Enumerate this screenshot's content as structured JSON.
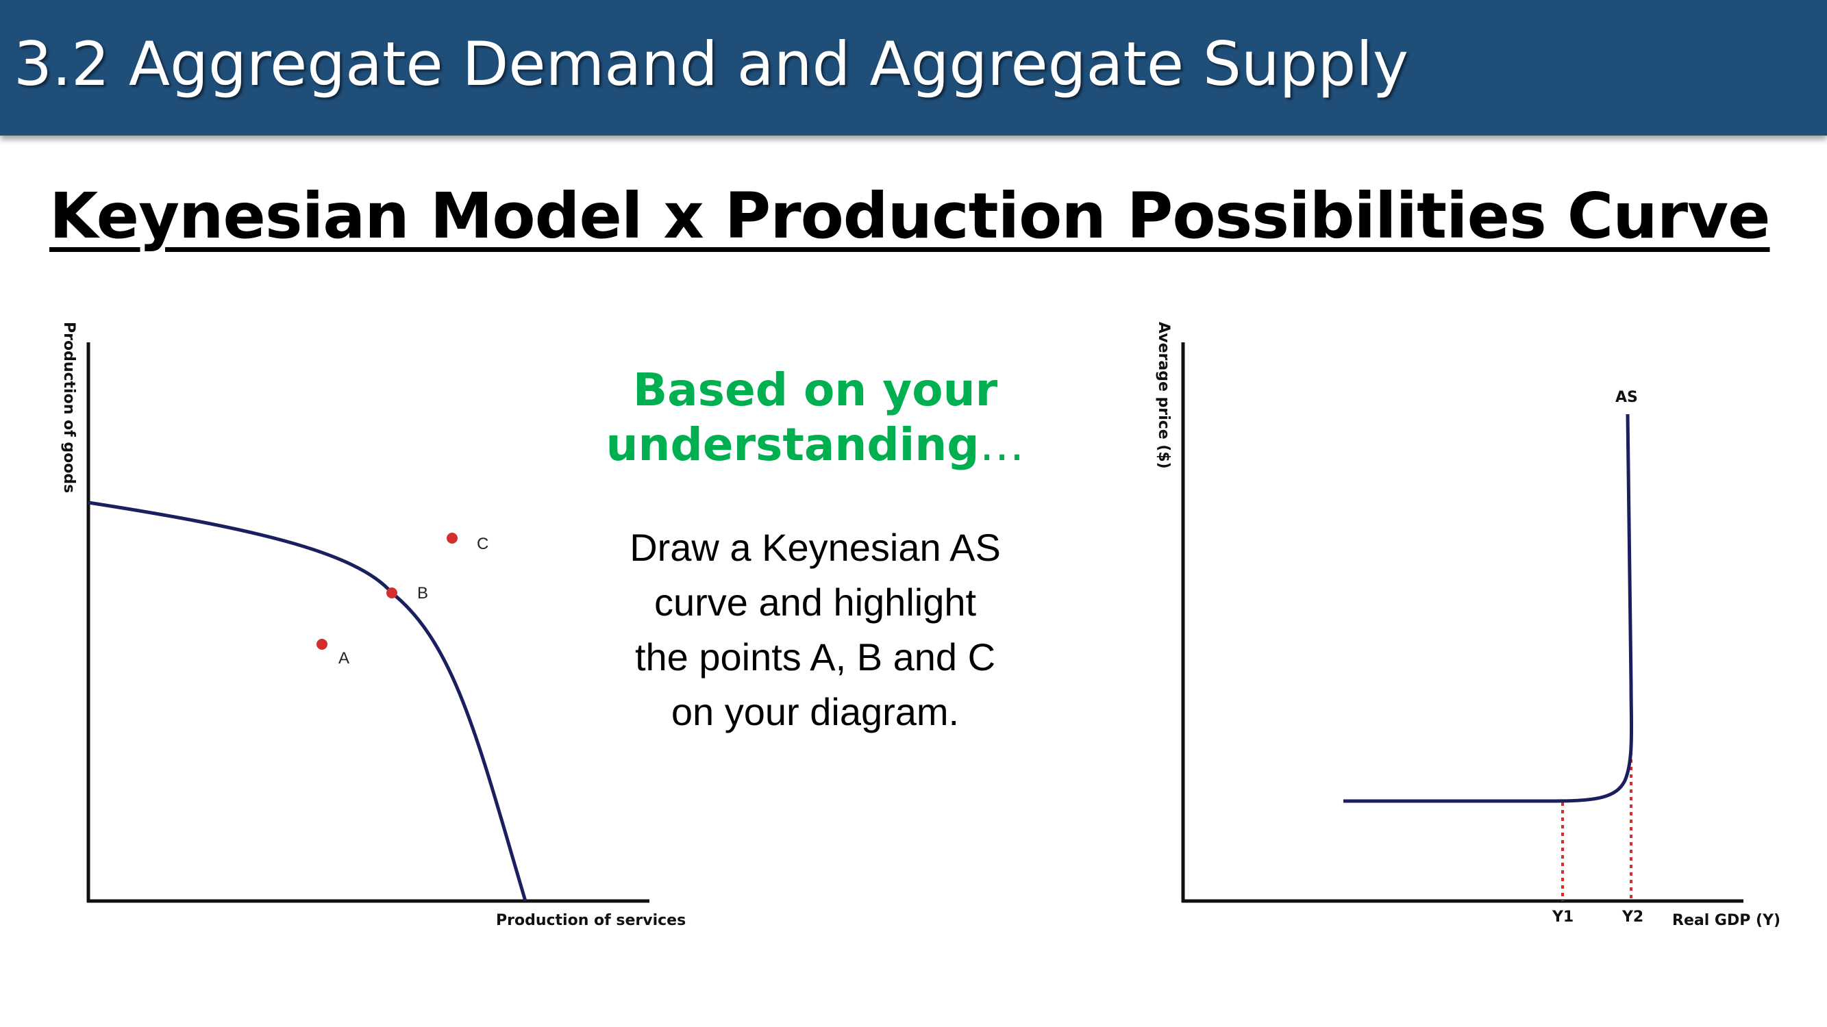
{
  "header": {
    "title": "3.2 Aggregate Demand and Aggregate Supply"
  },
  "subtitle": "Keynesian Model x Production Possibilities Curve",
  "prompt": {
    "line1": "Based on your",
    "line2": "understanding",
    "ellipsis": "…"
  },
  "task": {
    "line1": "Draw a Keynesian AS",
    "line2": "curve and highlight",
    "line3": "the points A, B and C",
    "line4": "on your diagram."
  },
  "ppc_diagram": {
    "y_axis_label": "Production of goods",
    "x_axis_label": "Production of services",
    "points": [
      {
        "label": "A"
      },
      {
        "label": "B"
      },
      {
        "label": "C"
      }
    ],
    "curve_color": "#1a1f5e",
    "point_color": "#d32f2f"
  },
  "as_diagram": {
    "y_axis_label": "Average price ($)",
    "x_axis_label": "Real GDP (Y)",
    "curve_label": "AS",
    "x_markers": [
      "Y1",
      "Y2"
    ],
    "curve_color": "#1a1f5e",
    "guide_color": "#d32f2f"
  }
}
